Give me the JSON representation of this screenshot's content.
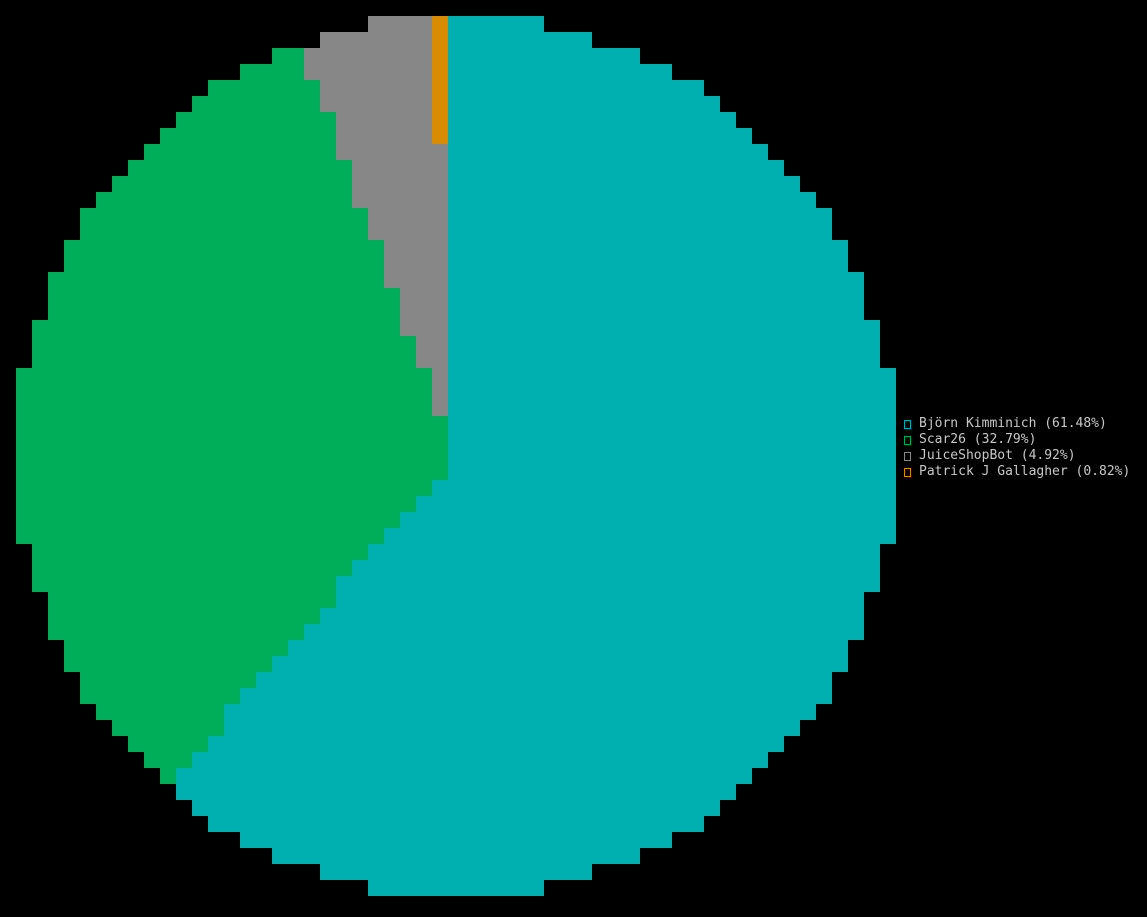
{
  "chart_data": {
    "type": "pie",
    "title": "",
    "slices": [
      {
        "label": "Björn Kimminich (61.48%)",
        "name": "Björn Kimminich",
        "value": 61.48,
        "color": "#00b0b0"
      },
      {
        "label": "Scar26 (32.79%)",
        "name": "Scar26",
        "value": 32.79,
        "color": "#00ae5a"
      },
      {
        "label": "JuiceShopBot (4.92%)",
        "name": "JuiceShopBot",
        "value": 4.92,
        "color": "#878787"
      },
      {
        "label": "Patrick J Gallagher (0.82%)",
        "name": "Patrick J Gallagher",
        "value": 0.82,
        "color": "#d98c00"
      }
    ],
    "legend_position": "right",
    "legend_swatch_glyph": "▯",
    "style": "pixelated-blocks"
  }
}
